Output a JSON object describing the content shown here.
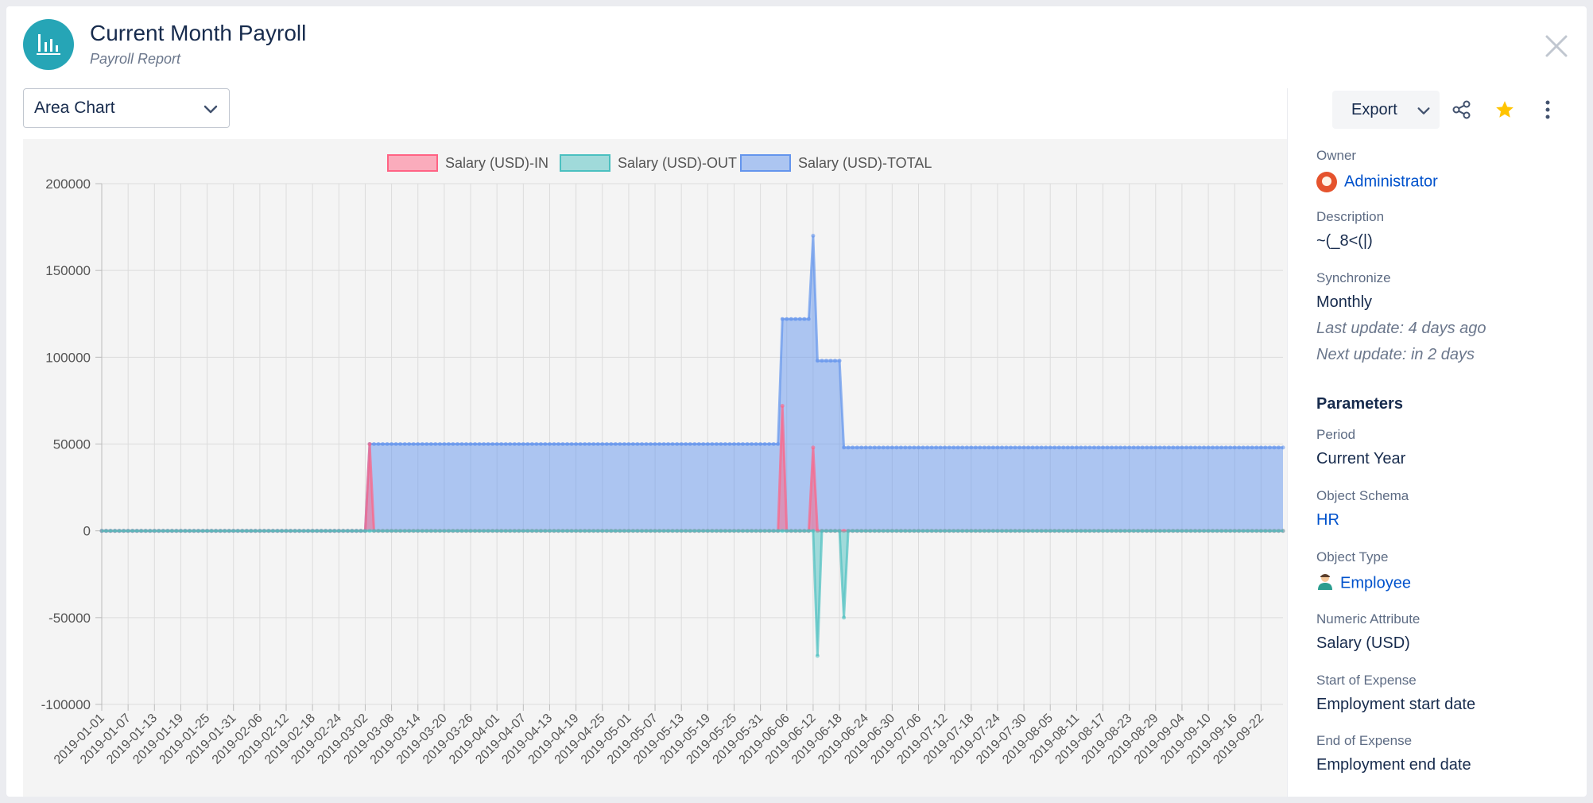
{
  "header": {
    "title": "Current Month Payroll",
    "subtitle": "Payroll Report",
    "icon": "bar-chart-icon",
    "accent": "#26a5b6"
  },
  "toolbar": {
    "chart_type": "Area Chart",
    "export_label": "Export"
  },
  "sidebar": {
    "owner_label": "Owner",
    "owner": "Administrator",
    "description_label": "Description",
    "description": "~(_8<(|)",
    "sync_label": "Synchronize",
    "sync": "Monthly",
    "last_update": "Last update: 4 days ago",
    "next_update": "Next update: in 2 days",
    "params_title": "Parameters",
    "period_label": "Period",
    "period": "Current Year",
    "schema_label": "Object Schema",
    "schema": "HR",
    "type_label": "Object Type",
    "type": "Employee",
    "attr_label": "Numeric Attribute",
    "attr": "Salary (USD)",
    "start_label": "Start of Expense",
    "start": "Employment start date",
    "end_label": "End of Expense",
    "end": "Employment end date"
  },
  "chart_data": {
    "type": "area",
    "legend_position": "top",
    "grid": true,
    "ylim": [
      -100000,
      200000
    ],
    "yticks": [
      200000,
      150000,
      100000,
      50000,
      0,
      -50000,
      -100000
    ],
    "x_start": "2019-01-01",
    "x_end": "2019-09-27",
    "xticks": [
      "2019-01-01",
      "2019-01-07",
      "2019-01-13",
      "2019-01-19",
      "2019-01-25",
      "2019-01-31",
      "2019-02-06",
      "2019-02-12",
      "2019-02-18",
      "2019-02-24",
      "2019-03-02",
      "2019-03-08",
      "2019-03-14",
      "2019-03-20",
      "2019-03-26",
      "2019-04-01",
      "2019-04-07",
      "2019-04-13",
      "2019-04-19",
      "2019-04-25",
      "2019-05-01",
      "2019-05-07",
      "2019-05-13",
      "2019-05-19",
      "2019-05-25",
      "2019-05-31",
      "2019-06-06",
      "2019-06-12",
      "2019-06-18",
      "2019-06-24",
      "2019-06-30",
      "2019-07-06",
      "2019-07-12",
      "2019-07-18",
      "2019-07-24",
      "2019-07-30",
      "2019-08-05",
      "2019-08-11",
      "2019-08-17",
      "2019-08-23",
      "2019-08-29",
      "2019-09-04",
      "2019-09-10",
      "2019-09-16",
      "2019-09-22"
    ],
    "series": [
      {
        "name": "Salary (USD)-IN",
        "color": "#ff6384",
        "points": [
          [
            "2019-01-01",
            0
          ],
          [
            "2019-03-02",
            0
          ],
          [
            "2019-03-03",
            50000
          ],
          [
            "2019-03-04",
            0
          ],
          [
            "2019-06-04",
            0
          ],
          [
            "2019-06-05",
            72000
          ],
          [
            "2019-06-06",
            0
          ],
          [
            "2019-06-11",
            0
          ],
          [
            "2019-06-12",
            48000
          ],
          [
            "2019-06-13",
            0
          ],
          [
            "2019-09-27",
            0
          ]
        ]
      },
      {
        "name": "Salary (USD)-OUT",
        "color": "#4bc0c0",
        "points": [
          [
            "2019-01-01",
            0
          ],
          [
            "2019-06-12",
            0
          ],
          [
            "2019-06-13",
            -72000
          ],
          [
            "2019-06-14",
            0
          ],
          [
            "2019-06-18",
            0
          ],
          [
            "2019-06-19",
            -50000
          ],
          [
            "2019-06-20",
            0
          ],
          [
            "2019-09-27",
            0
          ]
        ]
      },
      {
        "name": "Salary (USD)-TOTAL",
        "color": "#6495ed",
        "points": [
          [
            "2019-01-01",
            0
          ],
          [
            "2019-03-02",
            0
          ],
          [
            "2019-03-03",
            50000
          ],
          [
            "2019-06-04",
            50000
          ],
          [
            "2019-06-05",
            122000
          ],
          [
            "2019-06-11",
            122000
          ],
          [
            "2019-06-12",
            170000
          ],
          [
            "2019-06-13",
            98000
          ],
          [
            "2019-06-18",
            98000
          ],
          [
            "2019-06-19",
            48000
          ],
          [
            "2019-09-27",
            48000
          ]
        ]
      }
    ]
  }
}
